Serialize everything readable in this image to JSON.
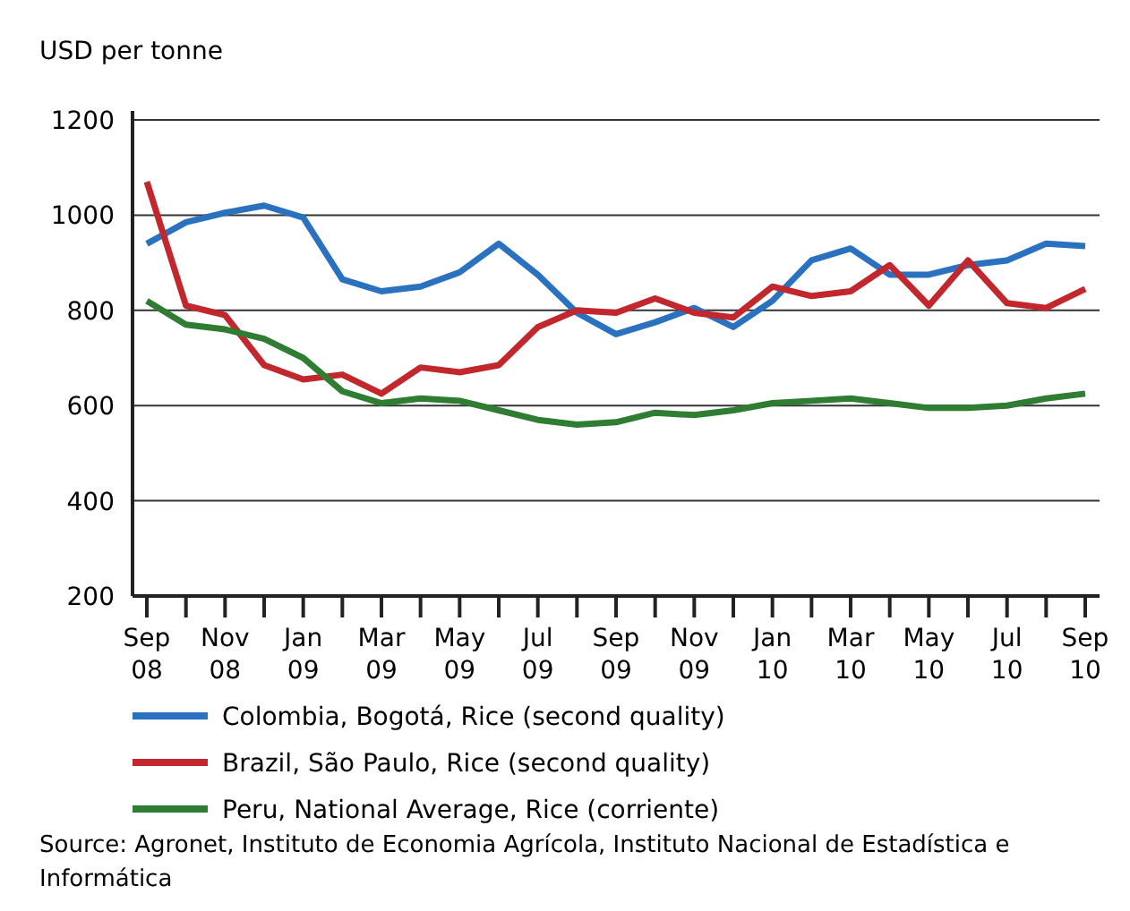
{
  "chart_data": {
    "type": "line",
    "ylabel": "USD per tonne",
    "categories": [
      "Sep 08",
      null,
      "Nov 08",
      null,
      "Jan 09",
      null,
      "Mar 09",
      null,
      "May 09",
      null,
      "Jul 09",
      null,
      "Sep 09",
      null,
      "Nov 09",
      null,
      "Jan 10",
      null,
      "Mar 10",
      null,
      "May 10",
      null,
      "Jul 10",
      null,
      "Sep 10"
    ],
    "series": [
      {
        "name": "Colombia, Bogotá, Rice (second quality)",
        "color": "#2a72c0",
        "values": [
          940,
          985,
          1005,
          1020,
          995,
          865,
          840,
          850,
          880,
          940,
          875,
          795,
          750,
          775,
          805,
          765,
          820,
          905,
          930,
          875,
          875,
          895,
          905,
          940,
          935
        ]
      },
      {
        "name": "Brazil, São Paulo, Rice (second quality)",
        "color": "#c1272d",
        "values": [
          1070,
          810,
          790,
          685,
          655,
          665,
          625,
          680,
          670,
          685,
          765,
          800,
          795,
          825,
          795,
          785,
          850,
          830,
          840,
          895,
          810,
          905,
          815,
          805,
          845
        ]
      },
      {
        "name": "Peru, National Average, Rice (corriente)",
        "color": "#2e7d32",
        "values": [
          820,
          770,
          760,
          740,
          700,
          630,
          605,
          615,
          610,
          590,
          570,
          560,
          565,
          585,
          580,
          590,
          605,
          610,
          615,
          605,
          595,
          595,
          600,
          615,
          625
        ]
      }
    ],
    "ylim": [
      200,
      1200
    ],
    "yticks": [
      200,
      400,
      600,
      800,
      1000,
      1200
    ],
    "grid": "y",
    "legend": "bottom",
    "line_style": "solid",
    "marker": "none",
    "annotations": [
      "Source: Agronet, Instituto de Economia Agrícola, Instituto Nacional de Estadística e Informática"
    ]
  }
}
